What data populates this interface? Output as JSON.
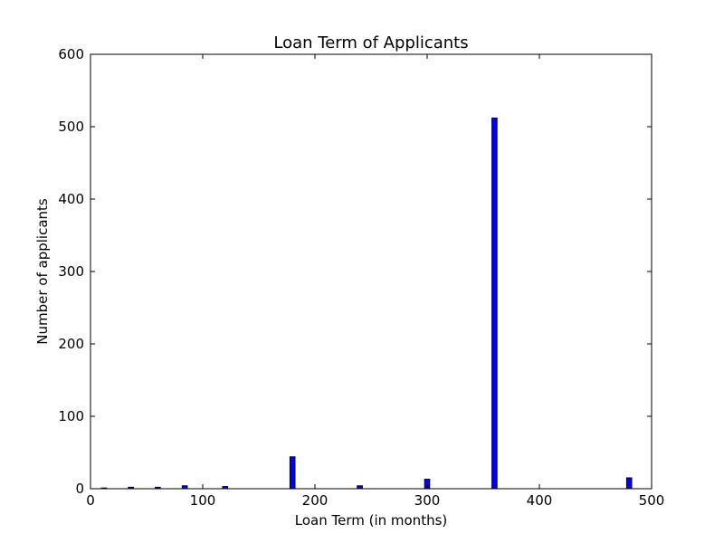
{
  "chart_data": {
    "type": "bar",
    "title": "Loan Term of Applicants",
    "xlabel": "Loan Term (in months)",
    "ylabel": "Number of applicants",
    "xlim": [
      0,
      500
    ],
    "ylim": [
      0,
      600
    ],
    "x_ticks": [
      "0",
      "100",
      "200",
      "300",
      "400",
      "500"
    ],
    "y_ticks": [
      "0",
      "100",
      "200",
      "300",
      "400",
      "500",
      "600"
    ],
    "bar_color": "#0000ff",
    "bar_width_units": 4.5,
    "grid": false,
    "legend": "none",
    "x": [
      12,
      36,
      60,
      84,
      120,
      180,
      240,
      300,
      360,
      480
    ],
    "values": [
      1,
      2,
      2,
      4,
      3,
      44,
      4,
      13,
      512,
      15
    ]
  }
}
